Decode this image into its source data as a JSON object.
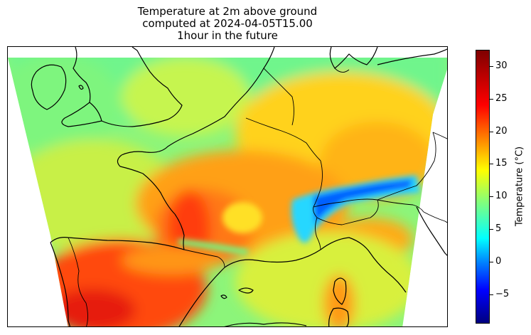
{
  "title": {
    "line1": "Temperature at 2m above ground",
    "line2": "computed at 2024-04-05T15.00",
    "line3": "1hour in the future"
  },
  "colorbar": {
    "label": "Temperature (°C)",
    "min": -9.5,
    "max": 32.5,
    "colormap": "jet",
    "ticks": [
      "30",
      "25",
      "20",
      "15",
      "10",
      "5",
      "0",
      "−5"
    ],
    "tick_values": [
      30,
      25,
      20,
      15,
      10,
      5,
      0,
      -5
    ]
  },
  "map": {
    "region": "Western Europe",
    "coastline_color": "#000000",
    "background": "#ffffff"
  }
}
